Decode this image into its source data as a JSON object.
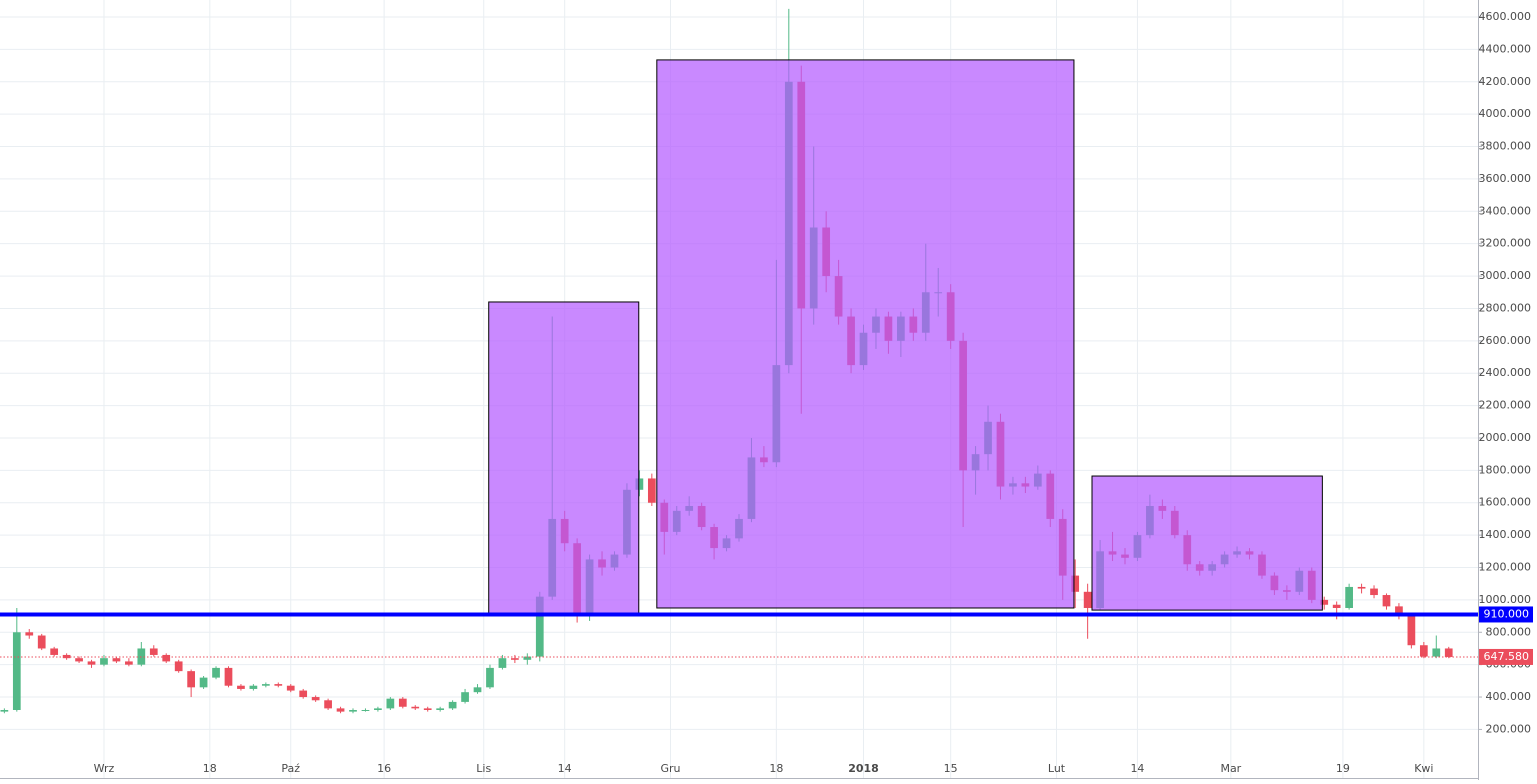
{
  "chart_data": {
    "type": "candlestick",
    "up_color": "#53b987",
    "down_color": "#eb4d5c",
    "grid": true,
    "xlim": [
      -16.7,
      220.7
    ],
    "xticks": [
      {
        "value": 0,
        "label": "Wrz"
      },
      {
        "value": 17,
        "label": "18"
      },
      {
        "value": 30,
        "label": "Paź"
      },
      {
        "value": 45,
        "label": "16"
      },
      {
        "value": 61,
        "label": "Lis"
      },
      {
        "value": 74,
        "label": "14"
      },
      {
        "value": 91,
        "label": "Gru"
      },
      {
        "value": 108,
        "label": "18"
      },
      {
        "value": 122,
        "label": "2018"
      },
      {
        "value": 136,
        "label": "15"
      },
      {
        "value": 153,
        "label": "Lut"
      },
      {
        "value": 166,
        "label": "14"
      },
      {
        "value": 181,
        "label": "Mar"
      },
      {
        "value": 199,
        "label": "19"
      },
      {
        "value": 212,
        "label": "Kwi"
      }
    ],
    "ylim": [
      -100,
      4705
    ],
    "yticks": [
      {
        "value": 200,
        "label": "200.000"
      },
      {
        "value": 400,
        "label": "400.000"
      },
      {
        "value": 600,
        "label": "600.000"
      },
      {
        "value": 800,
        "label": "800.000"
      },
      {
        "value": 1000,
        "label": "1000.000"
      },
      {
        "value": 1200,
        "label": "1200.000"
      },
      {
        "value": 1400,
        "label": "1400.000"
      },
      {
        "value": 1600,
        "label": "1600.000"
      },
      {
        "value": 1800,
        "label": "1800.000"
      },
      {
        "value": 2000,
        "label": "2000.000"
      },
      {
        "value": 2200,
        "label": "2200.000"
      },
      {
        "value": 2400,
        "label": "2400.000"
      },
      {
        "value": 2600,
        "label": "2600.000"
      },
      {
        "value": 2800,
        "label": "2800.000"
      },
      {
        "value": 3000,
        "label": "3000.000"
      },
      {
        "value": 3200,
        "label": "3200.000"
      },
      {
        "value": 3400,
        "label": "3400.000"
      },
      {
        "value": 3600,
        "label": "3600.000"
      },
      {
        "value": 3800,
        "label": "3800.000"
      },
      {
        "value": 4000,
        "label": "4000.000"
      },
      {
        "value": 4200,
        "label": "4200.000"
      },
      {
        "value": 4400,
        "label": "4400.000"
      },
      {
        "value": 4600,
        "label": "4600.000"
      }
    ],
    "x": [
      -16,
      -14,
      -12,
      -10,
      -8,
      -6,
      -4,
      -2,
      0,
      2,
      4,
      6,
      8,
      10,
      12,
      14,
      16,
      18,
      20,
      22,
      24,
      26,
      28,
      30,
      32,
      34,
      36,
      38,
      40,
      42,
      44,
      46,
      48,
      50,
      52,
      54,
      56,
      58,
      60,
      62,
      64,
      66,
      68,
      70,
      72,
      74,
      76,
      78,
      80,
      82,
      84,
      86,
      88,
      90,
      92,
      94,
      96,
      98,
      100,
      102,
      104,
      106,
      108,
      110,
      112,
      114,
      116,
      118,
      120,
      122,
      124,
      126,
      128,
      130,
      132,
      134,
      136,
      138,
      140,
      142,
      144,
      146,
      148,
      150,
      152,
      154,
      156,
      158,
      160,
      162,
      164,
      166,
      168,
      170,
      172,
      174,
      176,
      178,
      180,
      182,
      184,
      186,
      188,
      190,
      192,
      194,
      196,
      198,
      200,
      202,
      204,
      206,
      208,
      210,
      212,
      214,
      216
    ],
    "open": [
      310,
      320,
      800,
      780,
      700,
      660,
      640,
      620,
      600,
      640,
      620,
      600,
      700,
      660,
      620,
      560,
      460,
      520,
      580,
      470,
      450,
      470,
      480,
      470,
      440,
      400,
      380,
      330,
      310,
      320,
      320,
      330,
      390,
      340,
      330,
      320,
      330,
      370,
      430,
      460,
      580,
      640,
      630,
      650,
      1020,
      1500,
      1350,
      900,
      1250,
      1200,
      1280,
      1680,
      1750,
      1600,
      1420,
      1550,
      1580,
      1450,
      1320,
      1380,
      1500,
      1880,
      1850,
      2450,
      4200,
      2800,
      3300,
      3000,
      2750,
      2450,
      2650,
      2750,
      2600,
      2750,
      2650,
      2900,
      2900,
      2600,
      1800,
      1900,
      2100,
      1700,
      1720,
      1700,
      1780,
      1500,
      1150,
      1050,
      950,
      1300,
      1280,
      1260,
      1400,
      1580,
      1550,
      1400,
      1220,
      1180,
      1220,
      1280,
      1300,
      1280,
      1150,
      1060,
      1050,
      1180,
      1000,
      970,
      950,
      1080,
      1070,
      1030,
      960,
      900,
      720,
      650,
      700
    ],
    "high": [
      330,
      950,
      820,
      790,
      710,
      670,
      650,
      630,
      660,
      650,
      640,
      740,
      720,
      670,
      630,
      570,
      530,
      590,
      590,
      480,
      480,
      490,
      490,
      480,
      450,
      410,
      390,
      340,
      330,
      330,
      340,
      400,
      400,
      350,
      340,
      340,
      380,
      450,
      480,
      600,
      660,
      660,
      670,
      1050,
      2750,
      1550,
      1380,
      1280,
      1300,
      1300,
      1720,
      1800,
      1780,
      1620,
      1580,
      1640,
      1600,
      1470,
      1400,
      1530,
      2000,
      1950,
      3100,
      4650,
      4300,
      3800,
      3400,
      3100,
      2800,
      2700,
      2800,
      2780,
      2780,
      2800,
      3200,
      3050,
      2950,
      2650,
      1950,
      2200,
      2150,
      1760,
      1760,
      1830,
      1800,
      1560,
      1250,
      1100,
      1370,
      1420,
      1320,
      1420,
      1650,
      1620,
      1580,
      1430,
      1240,
      1240,
      1300,
      1330,
      1320,
      1300,
      1170,
      1090,
      1200,
      1200,
      1020,
      990,
      1100,
      1100,
      1090,
      1040,
      980,
      910,
      740,
      780,
      710
    ],
    "low": [
      300,
      310,
      760,
      690,
      650,
      630,
      610,
      580,
      590,
      610,
      590,
      590,
      650,
      610,
      550,
      400,
      450,
      510,
      460,
      440,
      440,
      460,
      460,
      430,
      390,
      370,
      320,
      300,
      300,
      310,
      310,
      320,
      330,
      320,
      310,
      310,
      320,
      360,
      420,
      450,
      570,
      610,
      600,
      620,
      1000,
      1300,
      860,
      870,
      1150,
      1180,
      1260,
      1640,
      1580,
      1280,
      1400,
      1520,
      1430,
      1250,
      1300,
      1360,
      1480,
      1820,
      1820,
      2400,
      2150,
      2700,
      2900,
      2700,
      2400,
      2420,
      2550,
      2520,
      2500,
      2600,
      2600,
      2750,
      2550,
      1450,
      1650,
      1800,
      1620,
      1650,
      1660,
      1680,
      1450,
      1000,
      950,
      760,
      940,
      1240,
      1220,
      1240,
      1380,
      1500,
      1380,
      1180,
      1150,
      1150,
      1200,
      1260,
      1250,
      1130,
      1030,
      1000,
      1030,
      980,
      940,
      880,
      940,
      1040,
      1010,
      940,
      880,
      700,
      640,
      640,
      640
    ],
    "close": [
      320,
      800,
      780,
      700,
      660,
      640,
      620,
      600,
      640,
      620,
      600,
      700,
      660,
      620,
      560,
      460,
      520,
      580,
      470,
      450,
      470,
      480,
      470,
      440,
      400,
      380,
      330,
      310,
      320,
      320,
      330,
      390,
      340,
      330,
      320,
      330,
      370,
      430,
      460,
      580,
      640,
      630,
      650,
      1020,
      1500,
      1350,
      900,
      1250,
      1200,
      1280,
      1680,
      1750,
      1600,
      1420,
      1550,
      1580,
      1450,
      1320,
      1380,
      1500,
      1880,
      1850,
      2450,
      4200,
      2800,
      3300,
      3000,
      2750,
      2450,
      2650,
      2750,
      2600,
      2750,
      2650,
      2900,
      2900,
      2600,
      1800,
      1900,
      2100,
      1700,
      1720,
      1700,
      1780,
      1500,
      1150,
      1050,
      950,
      1300,
      1280,
      1260,
      1400,
      1580,
      1550,
      1400,
      1220,
      1180,
      1220,
      1280,
      1300,
      1280,
      1150,
      1060,
      1050,
      1180,
      1000,
      970,
      950,
      1080,
      1070,
      1030,
      960,
      900,
      720,
      650,
      700,
      647.58
    ],
    "zones": [
      {
        "x": [
          61.8,
          85.9
        ],
        "y": [
          910,
          2840
        ],
        "color": "#b45cff"
      },
      {
        "x": [
          88.8,
          155.8
        ],
        "y": [
          950,
          4335
        ],
        "color": "#b45cff"
      },
      {
        "x": [
          158.7,
          195.7
        ],
        "y": [
          937,
          1765
        ],
        "color": "#b45cff"
      }
    ],
    "level": {
      "value": 910,
      "label": "910.000",
      "color": "#0000ff"
    },
    "last_price": {
      "value": 647.58,
      "label": "647.580",
      "color": "#eb4d5c"
    }
  }
}
